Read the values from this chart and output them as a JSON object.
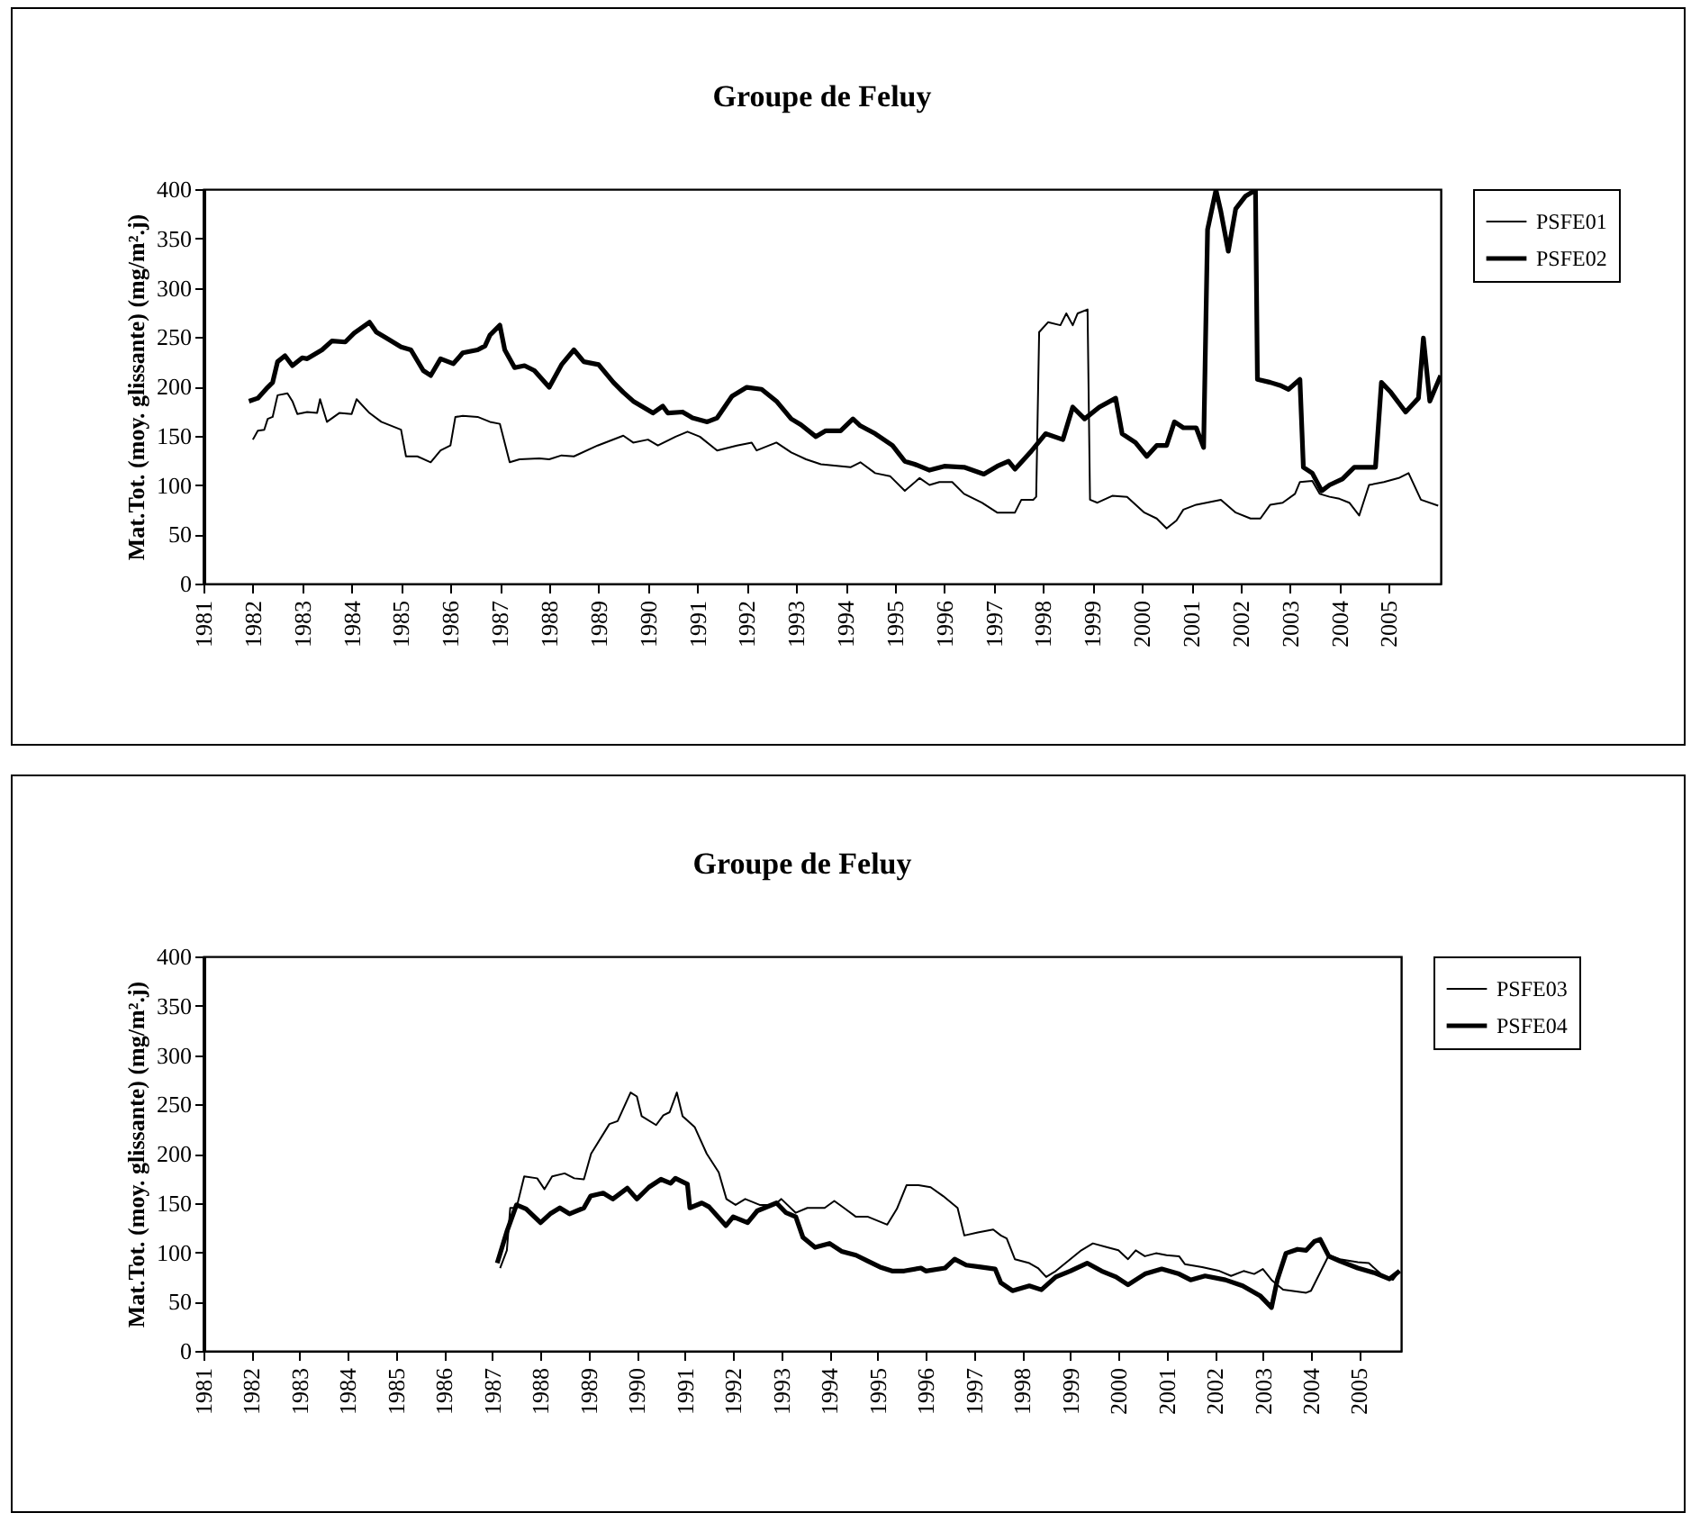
{
  "chart_data": [
    {
      "type": "line",
      "title": "Groupe de Feluy",
      "ylabel": "Mat.Tot. (moy. glissante) (mg/m².j)",
      "xlim": [
        1981,
        2006.05
      ],
      "ylim": [
        0,
        400
      ],
      "xticks": [
        1981,
        1982,
        1983,
        1984,
        1985,
        1986,
        1987,
        1988,
        1989,
        1990,
        1991,
        1992,
        1993,
        1994,
        1995,
        1996,
        1997,
        1998,
        1999,
        2000,
        2001,
        2002,
        2003,
        2004,
        2005
      ],
      "yticks": [
        0,
        50,
        100,
        150,
        200,
        250,
        300,
        350,
        400
      ],
      "legend": "right",
      "series": [
        {
          "name": "PSFE01",
          "color": "#000000",
          "x": [
            1982.0,
            1982.1,
            1982.23,
            1982.3,
            1982.4,
            1982.5,
            1982.7,
            1982.8,
            1982.9,
            1983.1,
            1983.3,
            1983.36,
            1983.5,
            1983.75,
            1984.0,
            1984.1,
            1984.36,
            1984.6,
            1985.0,
            1985.1,
            1985.33,
            1985.6,
            1985.8,
            1986.0,
            1986.1,
            1986.25,
            1986.55,
            1986.8,
            1987.0,
            1987.2,
            1987.4,
            1987.8,
            1988.0,
            1988.25,
            1988.5,
            1988.98,
            1989.5,
            1989.7,
            1990.0,
            1990.2,
            1990.56,
            1990.8,
            1991.05,
            1991.4,
            1991.8,
            1992.1,
            1992.2,
            1992.6,
            1992.9,
            1993.2,
            1993.5,
            1994.1,
            1994.3,
            1994.6,
            1994.9,
            1995.2,
            1995.5,
            1995.7,
            1995.9,
            1996.16,
            1996.4,
            1996.76,
            1997.07,
            1997.43,
            1997.56,
            1997.8,
            1997.86,
            1997.92,
            1998.1,
            1998.35,
            1998.47,
            1998.6,
            1998.7,
            1998.9,
            1998.95,
            1999.1,
            1999.4,
            1999.7,
            2000.05,
            2000.3,
            2000.5,
            2000.7,
            2000.84,
            2001.1,
            2001.6,
            2001.9,
            2002.2,
            2002.4,
            2002.6,
            2002.85,
            2003.1,
            2003.2,
            2003.45,
            2003.6,
            2003.8,
            2004.0,
            2004.2,
            2004.4,
            2004.6,
            2004.9,
            2005.2,
            2005.4,
            2005.65,
            2006.0
          ],
          "values": [
            146,
            155,
            156,
            167,
            169,
            191,
            193,
            185,
            172,
            174,
            173,
            187,
            164,
            173,
            172,
            187,
            173,
            164,
            156,
            129,
            129,
            123,
            135,
            140,
            169,
            170,
            169,
            164,
            162,
            123,
            126,
            127,
            126,
            130,
            129,
            140,
            150,
            143,
            146,
            140,
            149,
            154,
            149,
            135,
            140,
            143,
            135,
            143,
            133,
            126,
            121,
            118,
            123,
            112,
            109,
            94,
            107,
            100,
            103,
            103,
            91,
            82,
            72,
            72,
            85,
            85,
            88,
            255,
            265,
            262,
            274,
            262,
            274,
            278,
            85,
            82,
            89,
            88,
            72,
            66,
            56,
            64,
            75,
            80,
            85,
            72,
            66,
            66,
            80,
            82,
            91,
            103,
            104,
            91,
            88,
            86,
            82,
            69,
            100,
            103,
            107,
            112,
            85,
            79
          ]
        },
        {
          "name": "PSFE02",
          "color": "#000000",
          "x": [
            1981.92,
            1982.1,
            1982.3,
            1982.4,
            1982.5,
            1982.65,
            1982.8,
            1983.0,
            1983.1,
            1983.4,
            1983.6,
            1983.87,
            1984.05,
            1984.36,
            1984.5,
            1984.7,
            1985.0,
            1985.2,
            1985.45,
            1985.6,
            1985.8,
            1986.06,
            1986.25,
            1986.55,
            1986.7,
            1986.8,
            1987.0,
            1987.1,
            1987.3,
            1987.5,
            1987.7,
            1988.0,
            1988.25,
            1988.5,
            1988.7,
            1989.0,
            1989.3,
            1989.5,
            1989.7,
            1990.1,
            1990.3,
            1990.4,
            1990.7,
            1990.9,
            1991.2,
            1991.4,
            1991.7,
            1992.0,
            1992.3,
            1992.6,
            1992.9,
            1993.1,
            1993.4,
            1993.6,
            1993.9,
            1994.15,
            1994.3,
            1994.6,
            1994.95,
            1995.2,
            1995.4,
            1995.7,
            1996.0,
            1996.4,
            1996.8,
            1997.07,
            1997.3,
            1997.43,
            1997.74,
            1998.05,
            1998.4,
            1998.6,
            1998.84,
            1999.14,
            1999.47,
            1999.6,
            1999.87,
            2000.1,
            2000.3,
            2000.5,
            2000.66,
            2000.84,
            2001.1,
            2001.25,
            2001.33,
            2001.5,
            2001.6,
            2001.75,
            2001.9,
            2002.1,
            2002.3,
            2002.34,
            2002.6,
            2002.8,
            2002.97,
            2003.2,
            2003.27,
            2003.45,
            2003.64,
            2003.8,
            2004.06,
            2004.3,
            2004.73,
            2004.85,
            2005.04,
            2005.34,
            2005.6,
            2005.7,
            2005.83,
            2006.05
          ],
          "values": [
            185,
            188,
            199,
            204,
            225,
            231,
            221,
            229,
            228,
            237,
            246,
            245,
            254,
            265,
            255,
            249,
            240,
            237,
            216,
            211,
            228,
            223,
            234,
            237,
            241,
            252,
            262,
            237,
            219,
            221,
            216,
            199,
            222,
            237,
            225,
            222,
            204,
            194,
            185,
            173,
            180,
            173,
            174,
            168,
            164,
            168,
            190,
            199,
            197,
            185,
            167,
            161,
            149,
            155,
            155,
            167,
            160,
            152,
            140,
            124,
            121,
            115,
            119,
            118,
            111,
            119,
            124,
            116,
            133,
            152,
            146,
            179,
            167,
            179,
            188,
            152,
            143,
            129,
            140,
            140,
            164,
            158,
            158,
            138,
            359,
            399,
            377,
            337,
            380,
            393,
            399,
            207,
            204,
            201,
            197,
            207,
            118,
            112,
            94,
            100,
            106,
            118,
            118,
            204,
            194,
            174,
            188,
            249,
            185,
            211
          ]
        }
      ]
    },
    {
      "type": "line",
      "title": "Groupe de Feluy",
      "ylabel": "Mat.Tot. (moy. glissante) (mg/m².j)",
      "xlim": [
        1981,
        2005.87
      ],
      "ylim": [
        0,
        400
      ],
      "xticks": [
        1981,
        1982,
        1983,
        1984,
        1985,
        1986,
        1987,
        1988,
        1989,
        1990,
        1991,
        1992,
        1993,
        1994,
        1995,
        1996,
        1997,
        1998,
        1999,
        2000,
        2001,
        2002,
        2003,
        2004,
        2005
      ],
      "yticks": [
        0,
        50,
        100,
        150,
        200,
        250,
        300,
        350,
        400
      ],
      "legend": "right",
      "series": [
        {
          "name": "PSFE03",
          "color": "#000000",
          "x": [
            1987.16,
            1987.3,
            1987.37,
            1987.5,
            1987.66,
            1987.93,
            1988.08,
            1988.24,
            1988.5,
            1988.7,
            1988.9,
            1989.05,
            1989.43,
            1989.6,
            1989.87,
            1990.0,
            1990.1,
            1990.4,
            1990.55,
            1990.68,
            1990.83,
            1990.95,
            1991.2,
            1991.45,
            1991.7,
            1991.86,
            1992.05,
            1992.25,
            1992.55,
            1992.86,
            1993.0,
            1993.3,
            1993.54,
            1993.9,
            1994.1,
            1994.3,
            1994.55,
            1994.8,
            1995.2,
            1995.4,
            1995.6,
            1995.85,
            1996.1,
            1996.36,
            1996.66,
            1996.8,
            1997.08,
            1997.4,
            1997.56,
            1997.68,
            1997.85,
            1998.15,
            1998.33,
            1998.5,
            1998.7,
            1999.0,
            1999.23,
            1999.47,
            1999.77,
            2000.0,
            2000.2,
            2000.36,
            2000.55,
            2000.78,
            2001.0,
            2001.26,
            2001.38,
            2001.74,
            2002.1,
            2002.34,
            2002.6,
            2002.82,
            2003.0,
            2003.18,
            2003.42,
            2003.9,
            2004.0,
            2004.37,
            2004.6,
            2004.97,
            2005.2,
            2005.45,
            2005.7,
            2005.84
          ],
          "values": [
            84,
            102,
            145,
            145,
            177,
            175,
            164,
            177,
            180,
            175,
            174,
            200,
            230,
            233,
            262,
            258,
            238,
            229,
            239,
            242,
            262,
            238,
            227,
            200,
            181,
            154,
            148,
            154,
            148,
            148,
            154,
            140,
            145,
            145,
            152,
            145,
            136,
            136,
            128,
            144,
            168,
            168,
            166,
            157,
            145,
            117,
            120,
            123,
            117,
            114,
            93,
            89,
            84,
            75,
            81,
            93,
            102,
            109,
            105,
            102,
            93,
            102,
            96,
            99,
            97,
            96,
            88,
            85,
            81,
            76,
            81,
            78,
            83,
            72,
            62,
            59,
            61,
            97,
            93,
            90,
            89,
            78,
            72,
            81
          ]
        },
        {
          "name": "PSFE04",
          "color": "#000000",
          "x": [
            1987.1,
            1987.3,
            1987.5,
            1987.7,
            1988.0,
            1988.2,
            1988.4,
            1988.6,
            1988.9,
            1989.04,
            1989.3,
            1989.5,
            1989.8,
            1990.0,
            1990.25,
            1990.5,
            1990.7,
            1990.8,
            1991.05,
            1991.1,
            1991.35,
            1991.5,
            1991.85,
            1992.0,
            1992.3,
            1992.5,
            1992.9,
            1993.1,
            1993.3,
            1993.45,
            1993.7,
            1994.0,
            1994.25,
            1994.55,
            1994.8,
            1995.05,
            1995.3,
            1995.55,
            1995.9,
            1996.0,
            1996.4,
            1996.6,
            1996.84,
            1997.14,
            1997.44,
            1997.56,
            1997.8,
            1998.15,
            1998.4,
            1998.7,
            1999.0,
            1999.35,
            1999.65,
            1999.95,
            2000.2,
            2000.55,
            2000.9,
            2001.26,
            2001.5,
            2001.8,
            2002.22,
            2002.58,
            2002.94,
            2003.18,
            2003.3,
            2003.48,
            2003.72,
            2003.9,
            2004.07,
            2004.19,
            2004.37,
            2004.6,
            2004.97,
            2005.33,
            2005.63,
            2005.84
          ],
          "values": [
            89,
            121,
            148,
            144,
            130,
            139,
            145,
            139,
            145,
            157,
            160,
            154,
            165,
            154,
            166,
            174,
            170,
            175,
            169,
            145,
            150,
            146,
            127,
            136,
            130,
            142,
            150,
            140,
            136,
            115,
            105,
            109,
            101,
            97,
            91,
            85,
            81,
            81,
            84,
            81,
            84,
            93,
            87,
            85,
            83,
            69,
            61,
            66,
            62,
            75,
            81,
            89,
            81,
            75,
            67,
            78,
            83,
            78,
            72,
            76,
            72,
            66,
            56,
            44,
            72,
            99,
            103,
            102,
            111,
            113,
            96,
            91,
            84,
            79,
            73,
            81
          ]
        }
      ]
    }
  ]
}
